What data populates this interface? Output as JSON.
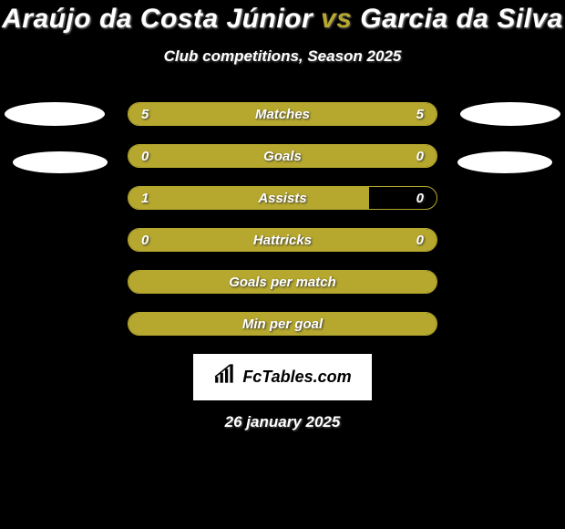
{
  "background_color": "#000000",
  "accent_color": "#b6a82e",
  "text_color": "#ffffff",
  "title": {
    "player1": "Araújo da Costa Júnior",
    "vs": "vs",
    "player2": "Garcia da Silva",
    "fontsize": 30
  },
  "subtitle": "Club competitions, Season 2025",
  "stats": {
    "matches": {
      "label": "Matches",
      "left_val": "5",
      "right_val": "5",
      "left_pct": 50,
      "right_pct": 50
    },
    "goals": {
      "label": "Goals",
      "left_val": "0",
      "right_val": "0",
      "left_pct": 50,
      "right_pct": 50
    },
    "assists": {
      "label": "Assists",
      "left_val": "1",
      "right_val": "0",
      "left_pct": 78,
      "right_pct": 0
    },
    "hattricks": {
      "label": "Hattricks",
      "left_val": "0",
      "right_val": "0",
      "left_pct": 50,
      "right_pct": 50
    },
    "gpm": {
      "label": "Goals per match",
      "left_val": "",
      "right_val": "",
      "left_pct": 100,
      "right_pct": 0,
      "full": true
    },
    "mpg": {
      "label": "Min per goal",
      "left_val": "",
      "right_val": "",
      "left_pct": 100,
      "right_pct": 0,
      "full": true
    }
  },
  "stat_order": [
    "matches",
    "goals",
    "assists",
    "hattricks",
    "gpm",
    "mpg"
  ],
  "logo_text": "FcTables.com",
  "date": "26 january 2025"
}
